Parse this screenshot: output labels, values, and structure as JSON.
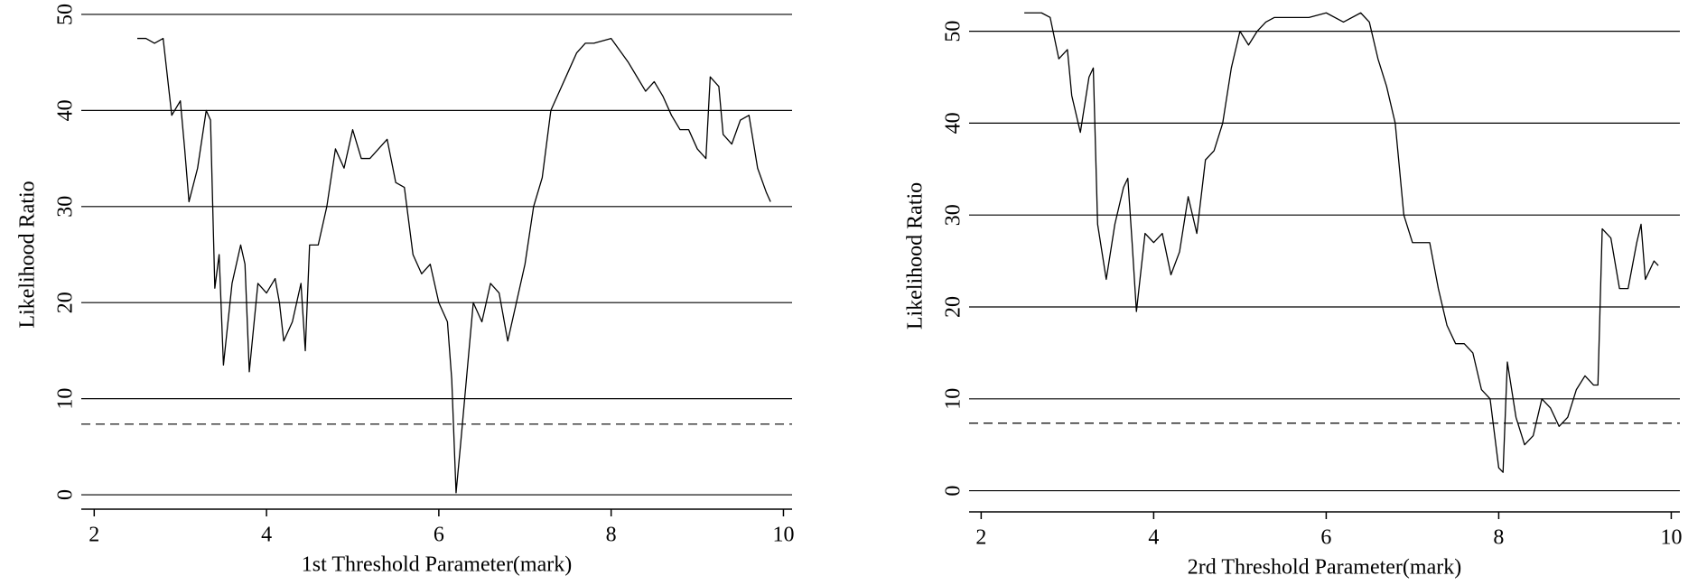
{
  "chart_data": [
    {
      "type": "line",
      "xlabel": "1st Threshold Parameter(mark)",
      "ylabel": "Likelihood Ratio",
      "xlim": [
        1.85,
        10.1
      ],
      "ylim": [
        -1.5,
        51.5
      ],
      "xticks": [
        2,
        4,
        6,
        8,
        10
      ],
      "yticks": [
        0,
        10,
        20,
        30,
        40,
        50
      ],
      "grid": true,
      "hline": 7.35,
      "hline_style": "dashed",
      "color": "#000000",
      "x": [
        2.5,
        2.6,
        2.7,
        2.8,
        2.9,
        3.0,
        3.05,
        3.1,
        3.2,
        3.3,
        3.35,
        3.4,
        3.45,
        3.5,
        3.6,
        3.7,
        3.75,
        3.8,
        3.9,
        4.0,
        4.1,
        4.15,
        4.2,
        4.3,
        4.4,
        4.45,
        4.5,
        4.6,
        4.7,
        4.8,
        4.9,
        5.0,
        5.1,
        5.2,
        5.3,
        5.4,
        5.5,
        5.6,
        5.7,
        5.8,
        5.9,
        6.0,
        6.1,
        6.15,
        6.2,
        6.25,
        6.3,
        6.4,
        6.5,
        6.6,
        6.7,
        6.8,
        6.9,
        7.0,
        7.1,
        7.2,
        7.3,
        7.4,
        7.5,
        7.6,
        7.7,
        7.8,
        8.0,
        8.2,
        8.3,
        8.4,
        8.5,
        8.6,
        8.7,
        8.8,
        8.9,
        9.0,
        9.1,
        9.15,
        9.25,
        9.3,
        9.4,
        9.5,
        9.6,
        9.7,
        9.8,
        9.85
      ],
      "values": [
        47.5,
        47.5,
        47,
        47.5,
        39.5,
        41,
        36,
        30.5,
        34,
        40,
        39,
        21.5,
        25,
        13.5,
        22,
        26,
        24,
        12.8,
        22,
        21,
        22.5,
        20,
        16,
        18,
        22,
        15,
        26,
        26,
        30,
        36,
        34,
        38,
        35,
        35,
        36,
        37,
        32.5,
        32,
        25,
        23,
        24,
        20,
        18,
        12,
        0.2,
        5,
        10,
        20,
        18,
        22,
        21,
        16,
        20,
        24,
        30,
        33,
        40,
        42,
        44,
        46,
        47,
        47,
        47.5,
        45,
        43.5,
        42,
        43,
        41.5,
        39.5,
        38,
        38,
        36,
        35,
        43.5,
        42.5,
        37.5,
        36.5,
        39,
        39.5,
        34,
        31.5,
        30.5
      ]
    },
    {
      "type": "line",
      "xlabel": "2rd Threshold Parameter(mark)",
      "ylabel": "Likelihood Ratio",
      "xlim": [
        1.86,
        10.1
      ],
      "ylim": [
        -2.3,
        53.4
      ],
      "xticks": [
        2,
        4,
        6,
        8,
        10
      ],
      "yticks": [
        0,
        10,
        20,
        30,
        40,
        50
      ],
      "grid": true,
      "hline": 7.35,
      "hline_style": "dashed",
      "color": "#000000",
      "x": [
        2.5,
        2.6,
        2.7,
        2.8,
        2.9,
        3.0,
        3.05,
        3.15,
        3.25,
        3.3,
        3.35,
        3.45,
        3.55,
        3.65,
        3.7,
        3.75,
        3.8,
        3.9,
        4.0,
        4.1,
        4.2,
        4.3,
        4.4,
        4.5,
        4.6,
        4.7,
        4.8,
        4.9,
        5.0,
        5.1,
        5.2,
        5.3,
        5.4,
        5.6,
        5.8,
        6.0,
        6.2,
        6.4,
        6.5,
        6.6,
        6.7,
        6.8,
        6.9,
        7.0,
        7.1,
        7.2,
        7.3,
        7.4,
        7.5,
        7.6,
        7.7,
        7.8,
        7.9,
        8.0,
        8.05,
        8.1,
        8.2,
        8.3,
        8.4,
        8.5,
        8.6,
        8.7,
        8.8,
        8.9,
        9.0,
        9.1,
        9.15,
        9.2,
        9.3,
        9.4,
        9.5,
        9.6,
        9.65,
        9.7,
        9.8,
        9.85
      ],
      "values": [
        52,
        52,
        52,
        51.5,
        47,
        48,
        43,
        39,
        45,
        46,
        29,
        23,
        29,
        33,
        34,
        27,
        19.5,
        28,
        27,
        28,
        23.5,
        26,
        32,
        28,
        36,
        37,
        40,
        46,
        50,
        48.5,
        50,
        51,
        51.5,
        51.5,
        51.5,
        52,
        51,
        52,
        51,
        47,
        44,
        40,
        30,
        27,
        27,
        27,
        22,
        18,
        16,
        16,
        15,
        11,
        10,
        2.5,
        2,
        14,
        8,
        5,
        6,
        10,
        9,
        7,
        8,
        11,
        12.5,
        11.5,
        11.5,
        28.5,
        27.5,
        22,
        22,
        27,
        29,
        23,
        25,
        24.5
      ]
    }
  ]
}
